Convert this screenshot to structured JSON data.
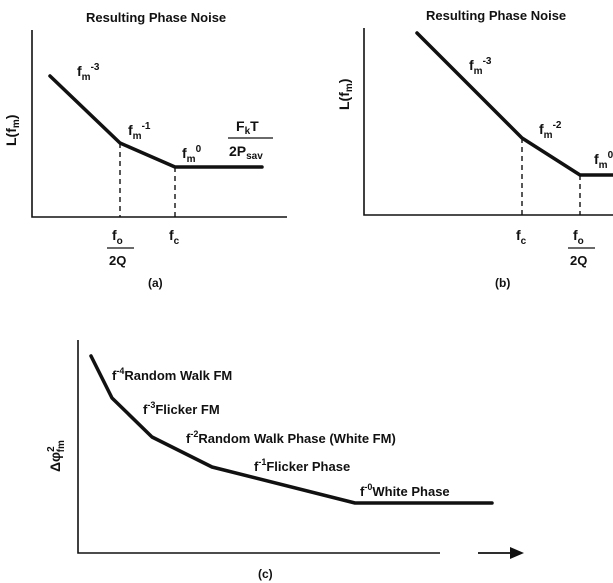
{
  "panel_a": {
    "title": "Resulting Phase Noise",
    "y_label_main": "L(f",
    "y_label_sub": "m",
    "y_label_end": ")",
    "seg1_base": "f",
    "seg1_sub": "m",
    "seg1_sup": "-3",
    "seg2_base": "f",
    "seg2_sub": "m",
    "seg2_sup": "-1",
    "seg3_base": "f",
    "seg3_sub": "m",
    "seg3_sup": "0",
    "floor_num_base": "F",
    "floor_num_sub": "k",
    "floor_num_end": "T",
    "floor_den_base": "2P",
    "floor_den_sub": "sav",
    "tick1_base": "f",
    "tick1_sub": "o",
    "tick1_den": "2Q",
    "tick2_base": "f",
    "tick2_sub": "c",
    "caption": "(a)"
  },
  "panel_b": {
    "title": "Resulting Phase Noise",
    "y_label_main": "L(f",
    "y_label_sub": "m",
    "y_label_end": ")",
    "seg1_base": "f",
    "seg1_sub": "m",
    "seg1_sup": "-3",
    "seg2_base": "f",
    "seg2_sub": "m",
    "seg2_sup": "-2",
    "seg3_base": "f",
    "seg3_sub": "m",
    "seg3_sup": "0",
    "tick1_base": "f",
    "tick1_sub": "c",
    "tick2_base": "f",
    "tick2_sub": "o",
    "tick2_den": "2Q",
    "caption": "(b)"
  },
  "panel_c": {
    "y_label_main": "Δφ",
    "y_label_sup": "2",
    "y_label_sub": "fm",
    "term1_base": "f",
    "term1_sup": "-4",
    "term1_text": "Random Walk FM",
    "term2_base": "f",
    "term2_sup": "-3",
    "term2_text": "Flicker FM",
    "term3_base": "f",
    "term3_sup": "-2",
    "term3_text": "Random Walk Phase (White FM)",
    "term4_base": "f",
    "term4_sup": "-1",
    "term4_text": "Flicker Phase",
    "term5_base": "f",
    "term5_sup": "-0",
    "term5_text": "White Phase",
    "caption": "(c)"
  }
}
